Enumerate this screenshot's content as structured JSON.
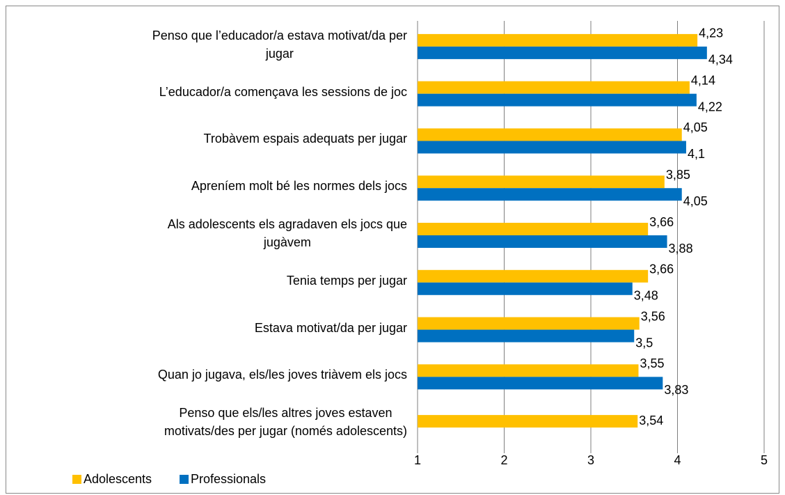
{
  "chart_data": {
    "type": "bar",
    "orientation": "horizontal",
    "categories": [
      "Penso que l’educador/a estava motivat/da per\njugar",
      "L’educador/a començava les sessions de joc",
      "Trobàvem espais adequats per jugar",
      "Apreníem molt bé les normes dels jocs",
      "Als adolescents els agradaven els jocs que\njugàvem",
      "Tenia temps per jugar",
      "Estava motivat/da per jugar",
      "Quan jo jugava, els/les joves triàvem els jocs",
      "Penso que els/les altres joves estaven\nmotivats/des per jugar (només adolescents)"
    ],
    "series": [
      {
        "name": "Adolescents",
        "color": "#ffc000",
        "values": [
          4.23,
          4.14,
          4.05,
          3.85,
          3.66,
          3.66,
          3.56,
          3.55,
          3.54
        ],
        "value_labels": [
          "4,23",
          "4,14",
          "4,05",
          "3,85",
          "3,66",
          "3,66",
          "3,56",
          "3,55",
          "3,54"
        ]
      },
      {
        "name": "Professionals",
        "color": "#0070c0",
        "values": [
          4.34,
          4.22,
          4.1,
          4.05,
          3.88,
          3.48,
          3.5,
          3.83,
          null
        ],
        "value_labels": [
          "4,34",
          "4,22",
          "4,1",
          "4,05",
          "3,88",
          "3,48",
          "3,5",
          "3,83",
          null
        ]
      }
    ],
    "xlim": [
      1,
      5
    ],
    "xticks": [
      1,
      2,
      3,
      4,
      5
    ],
    "grid": true,
    "legend": "bottom-left"
  }
}
